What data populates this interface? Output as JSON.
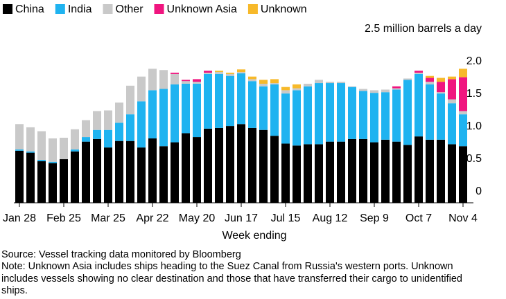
{
  "chart_data": {
    "type": "stacked_bar",
    "categories": [
      "Jan 28",
      null,
      null,
      null,
      "Feb 25",
      null,
      null,
      null,
      "Mar 25",
      null,
      null,
      null,
      "Apr 22",
      null,
      null,
      null,
      "May 20",
      null,
      null,
      null,
      "Jun 17",
      null,
      null,
      null,
      "Jul 15",
      null,
      null,
      null,
      "Aug 12",
      null,
      null,
      null,
      "Sep 9",
      null,
      null,
      null,
      "Oct 7",
      null,
      null,
      null,
      "Nov 4"
    ],
    "series": [
      {
        "name": "China",
        "color": "#000000",
        "values": [
          0.8,
          0.77,
          0.64,
          0.61,
          0.67,
          0.79,
          0.94,
          0.98,
          0.85,
          0.95,
          0.95,
          0.85,
          0.99,
          0.87,
          0.93,
          1.07,
          1.01,
          1.14,
          1.15,
          1.18,
          1.21,
          1.15,
          1.12,
          1.03,
          0.91,
          0.88,
          0.9,
          0.9,
          0.94,
          0.94,
          0.98,
          0.98,
          0.93,
          0.97,
          0.94,
          0.89,
          1.02,
          0.97,
          0.97,
          0.9,
          0.87
        ]
      },
      {
        "name": "India",
        "color": "#1fb3f0",
        "values": [
          0.02,
          0.02,
          0.02,
          0.02,
          0,
          0.03,
          0.07,
          0.14,
          0.27,
          0.28,
          0.41,
          0.71,
          0.74,
          0.88,
          0.89,
          0.76,
          0.82,
          0.84,
          0.83,
          0.77,
          0.78,
          0.72,
          0.67,
          0.79,
          0.77,
          0.85,
          0.89,
          0.94,
          0.9,
          0.9,
          0.8,
          0.74,
          0.76,
          0.73,
          0.8,
          1.0,
          0.96,
          0.85,
          0.71,
          0.63,
          0.49
        ]
      },
      {
        "name": "Other",
        "color": "#c9c9c9",
        "values": [
          0.39,
          0.37,
          0.44,
          0.36,
          0.33,
          0.31,
          0.26,
          0.29,
          0.3,
          0.31,
          0.44,
          0.38,
          0.33,
          0.29,
          0.16,
          0.04,
          0.03,
          0.02,
          0.03,
          0.03,
          0.02,
          0.03,
          0.04,
          0.02,
          0.05,
          0.03,
          0.04,
          0.05,
          0.02,
          0.02,
          0.01,
          0.03,
          0.04,
          0.04,
          0.02,
          0.02,
          0.02,
          0.04,
          0.02,
          0.06,
          0.05
        ]
      },
      {
        "name": "Unknown Asia",
        "color": "#f0157f",
        "values": [
          0,
          0,
          0,
          0,
          0,
          0,
          0,
          0,
          0,
          0,
          0,
          0,
          0,
          0,
          0.02,
          0.02,
          0.04,
          0.03,
          0,
          0,
          0,
          0,
          0,
          0,
          0,
          0,
          0,
          0,
          0,
          0,
          0,
          0,
          0,
          0,
          0.03,
          0,
          0.03,
          0.06,
          0.16,
          0.31,
          0.52
        ]
      },
      {
        "name": "Unknown",
        "color": "#f7b92a",
        "values": [
          0,
          0,
          0,
          0,
          0,
          0,
          0,
          0,
          0,
          0,
          0,
          0,
          0,
          0,
          0,
          0,
          0,
          0,
          0.02,
          0.02,
          0.04,
          0.04,
          0.06,
          0.06,
          0.05,
          0.06,
          0,
          0,
          0,
          0,
          0,
          0,
          0,
          0,
          0,
          0,
          0,
          0.03,
          0.06,
          0.04,
          0.13
        ]
      }
    ],
    "ylim": [
      0,
      2.5
    ],
    "yticks": [
      0,
      {
        "value": 0.5,
        "label": "0.5"
      },
      {
        "value": 1,
        "label": "1.0"
      },
      {
        "value": 1.5,
        "label": "1.5"
      },
      {
        "value": 2,
        "label": "2.0"
      },
      {
        "value": 2.5,
        "label": "2.5 million barrels a day"
      }
    ],
    "xlabel": "Week ending",
    "legend": "top-left",
    "source": "Source: Vessel tracking data monitored by Bloomberg",
    "note": "Note: Unknown Asia includes ships heading to the Suez Canal from Russia's western ports. Unknown includes vessels showing no clear destination and those that have transferred their cargo to unidentified ships."
  }
}
